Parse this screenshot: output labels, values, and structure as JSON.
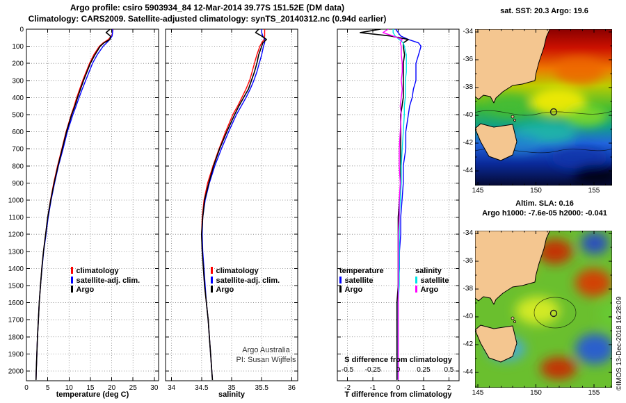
{
  "header": {
    "title1": "Argo profile: csiro 5903934_84 12-Mar-2014 39.77S 151.52E (DM data)",
    "title2": "Climatology: CARS2009. Satellite-adjusted climatology: synTS_20140312.nc (0.94d earlier)"
  },
  "depths": [
    0,
    20,
    40,
    60,
    80,
    100,
    150,
    200,
    250,
    300,
    350,
    400,
    450,
    500,
    600,
    700,
    800,
    900,
    1000,
    1100,
    1200,
    1300,
    1400,
    1500,
    1600,
    1700,
    1800,
    1900,
    2000,
    2050
  ],
  "chart_data": [
    {
      "type": "line",
      "panel": "temperature-profile",
      "xlabel": "temperature (deg C)",
      "ylabel": "depth (m)",
      "xlim": [
        0,
        31
      ],
      "ylim": [
        0,
        2057
      ],
      "xticks": [
        0,
        5,
        10,
        15,
        20,
        25,
        30
      ],
      "yticks": [
        0,
        100,
        200,
        300,
        400,
        500,
        600,
        700,
        800,
        900,
        1000,
        1100,
        1200,
        1300,
        1400,
        1500,
        1600,
        1700,
        1800,
        1900,
        2000
      ],
      "legend": [
        {
          "label": "climatology",
          "color": "#ff0000"
        },
        {
          "label": "satellite-adj. clim.",
          "color": "#0000ff"
        },
        {
          "label": "Argo",
          "color": "#000000"
        }
      ],
      "series": [
        {
          "key": "climatology",
          "color": "#ff0000",
          "values": [
            20.3,
            20.2,
            20.0,
            19.2,
            18.0,
            17.1,
            15.8,
            14.8,
            14.0,
            13.2,
            12.5,
            11.8,
            11.2,
            10.5,
            9.3,
            8.3,
            7.3,
            6.4,
            5.65,
            5.0,
            4.5,
            4.0,
            3.6,
            3.3,
            3.0,
            2.8,
            2.6,
            2.45,
            2.3,
            2.25
          ]
        },
        {
          "key": "satellite-adj-clim",
          "color": "#0000ff",
          "values": [
            20.2,
            20.2,
            20.1,
            19.6,
            18.8,
            18.0,
            16.6,
            15.5,
            14.7,
            13.9,
            13.1,
            12.35,
            11.65,
            10.9,
            9.6,
            8.6,
            7.5,
            6.6,
            5.8,
            5.1,
            4.6,
            4.05,
            3.65,
            3.3,
            3.0,
            2.8,
            2.6,
            2.45,
            2.3,
            2.25
          ]
        },
        {
          "key": "argo",
          "color": "#000000",
          "values": [
            19.6,
            18.7,
            19.7,
            19.6,
            18.2,
            17.3,
            16.05,
            15.0,
            14.2,
            13.4,
            12.7,
            12.0,
            11.35,
            10.6,
            9.4,
            8.4,
            7.4,
            6.5,
            5.7,
            5.0,
            4.5,
            4.0,
            3.6,
            3.3,
            3.0,
            2.8,
            2.6,
            2.45,
            2.3,
            2.25
          ]
        }
      ]
    },
    {
      "type": "line",
      "panel": "salinity-profile",
      "xlabel": "salinity",
      "ylabel": "depth (m)",
      "xlim": [
        33.9,
        36.1
      ],
      "ylim": [
        0,
        2057
      ],
      "xticks": [
        34,
        34.5,
        35,
        35.5,
        36
      ],
      "yticks": [
        0,
        100,
        200,
        300,
        400,
        500,
        600,
        700,
        800,
        900,
        1000,
        1100,
        1200,
        1300,
        1400,
        1500,
        1600,
        1700,
        1800,
        1900,
        2000
      ],
      "notes": [
        "Argo Australia",
        "PI: Susan Wijffels"
      ],
      "legend": [
        {
          "label": "climatology",
          "color": "#ff0000"
        },
        {
          "label": "satellite-adj. clim.",
          "color": "#0000ff"
        },
        {
          "label": "Argo",
          "color": "#000000"
        }
      ],
      "series": [
        {
          "key": "climatology",
          "color": "#ff0000",
          "values": [
            35.55,
            35.55,
            35.55,
            35.54,
            35.5,
            35.47,
            35.42,
            35.38,
            35.34,
            35.3,
            35.24,
            35.17,
            35.1,
            35.02,
            34.9,
            34.79,
            34.69,
            34.6,
            34.54,
            34.51,
            34.5,
            34.51,
            34.53,
            34.55,
            34.58,
            34.61,
            34.63,
            34.65,
            34.67,
            34.68
          ]
        },
        {
          "key": "satellite-adj-clim",
          "color": "#0000ff",
          "values": [
            35.5,
            35.5,
            35.52,
            35.55,
            35.55,
            35.53,
            35.5,
            35.46,
            35.42,
            35.37,
            35.31,
            35.24,
            35.16,
            35.08,
            34.95,
            34.83,
            34.72,
            34.63,
            34.56,
            34.52,
            34.51,
            34.52,
            34.54,
            34.56,
            34.58,
            34.61,
            34.63,
            34.65,
            34.67,
            34.68
          ]
        },
        {
          "key": "argo",
          "color": "#000000",
          "values": [
            35.45,
            35.4,
            35.5,
            35.58,
            35.52,
            35.5,
            35.45,
            35.42,
            35.38,
            35.33,
            35.28,
            35.2,
            35.12,
            35.05,
            34.92,
            34.8,
            34.7,
            34.62,
            34.55,
            34.52,
            34.5,
            34.51,
            34.53,
            34.55,
            34.58,
            34.61,
            34.63,
            34.65,
            34.67,
            34.68
          ]
        }
      ]
    },
    {
      "type": "line",
      "panel": "difference-profile",
      "xlabel": "T difference from climatology",
      "ylabel": "depth (m)",
      "xlim": [
        -2.4,
        2.4
      ],
      "ylim": [
        0,
        2057
      ],
      "xticks": [
        -2,
        -1,
        0,
        1,
        2
      ],
      "yticks": [
        0,
        100,
        200,
        300,
        400,
        500,
        600,
        700,
        800,
        900,
        1000,
        1100,
        1200,
        1300,
        1400,
        1500,
        1600,
        1700,
        1800,
        1900,
        2000
      ],
      "s_axis": {
        "label": "S difference from climatology",
        "ticks": [
          "-0.5",
          "-0.25",
          "0",
          "0.25",
          "0.5"
        ],
        "scale": 4
      },
      "legends": [
        {
          "header": "temperature",
          "items": [
            {
              "label": "satellite",
              "color": "#0000ff"
            },
            {
              "label": "Argo",
              "color": "#000000"
            }
          ]
        },
        {
          "header": "salinity",
          "items": [
            {
              "label": "satellite",
              "color": "#00e6e6"
            },
            {
              "label": "Argo",
              "color": "#ff00ff"
            }
          ]
        }
      ],
      "series": [
        {
          "key": "t-satellite",
          "color": "#0000ff",
          "values": [
            -0.1,
            0.0,
            0.1,
            0.4,
            0.8,
            0.9,
            0.8,
            0.7,
            0.7,
            0.7,
            0.6,
            0.55,
            0.45,
            0.4,
            0.3,
            0.3,
            0.2,
            0.2,
            0.15,
            0.1,
            0.1,
            0.05,
            0.05,
            0.0,
            0.0,
            0.0,
            0.0,
            0.0,
            0.0,
            0.0
          ]
        },
        {
          "key": "t-argo",
          "color": "#000000",
          "values": [
            -0.7,
            -1.5,
            -0.3,
            0.4,
            0.2,
            0.2,
            0.25,
            0.2,
            0.2,
            0.2,
            0.2,
            0.2,
            0.15,
            0.1,
            0.1,
            0.1,
            0.1,
            0.1,
            0.05,
            0.0,
            0.0,
            0.0,
            0.0,
            0.0,
            -0.05,
            -0.05,
            -0.05,
            -0.05,
            -0.05,
            -0.05
          ]
        },
        {
          "key": "s-satellite",
          "color": "#00e6e6",
          "scale": 4,
          "values": [
            -0.05,
            -0.05,
            -0.03,
            0.01,
            0.05,
            0.06,
            0.08,
            0.08,
            0.08,
            0.07,
            0.07,
            0.07,
            0.06,
            0.06,
            0.05,
            0.04,
            0.03,
            0.03,
            0.02,
            0.01,
            0.01,
            0.01,
            0.01,
            0.01,
            0.0,
            0.0,
            0.0,
            0.0,
            0.0,
            0.0
          ]
        },
        {
          "key": "s-argo",
          "color": "#ff00ff",
          "scale": 4,
          "values": [
            -0.1,
            -0.15,
            -0.05,
            0.04,
            0.02,
            0.03,
            0.03,
            0.04,
            0.04,
            0.03,
            0.04,
            0.03,
            0.02,
            0.03,
            0.02,
            0.01,
            0.01,
            0.02,
            0.01,
            0.01,
            0.0,
            0.0,
            0.0,
            0.0,
            0.0,
            0.0,
            0.0,
            0.0,
            0.0,
            0.0
          ]
        }
      ]
    }
  ],
  "maps": [
    {
      "title": "sat. SST: 20.3 Argo: 19.6",
      "lat_ticks": [
        -34,
        -36,
        -38,
        -40,
        -42,
        -44
      ],
      "lon_ticks": [
        145,
        150,
        155
      ],
      "float": {
        "lat": -39.77,
        "lon": 151.52
      }
    },
    {
      "title1": "Altim. SLA: 0.16",
      "title2": "Argo h1000: -7.6e-05 h2000: -0.041",
      "lat_ticks": [
        -34,
        -36,
        -38,
        -40,
        -42,
        -44
      ],
      "lon_ticks": [
        145,
        150,
        155
      ],
      "float": {
        "lat": -39.77,
        "lon": 151.52
      }
    }
  ],
  "colors": {
    "land": "#f4c690",
    "coast": "#000000"
  },
  "copyright": "©IMOS 13-Dec-2018 16:28:09"
}
